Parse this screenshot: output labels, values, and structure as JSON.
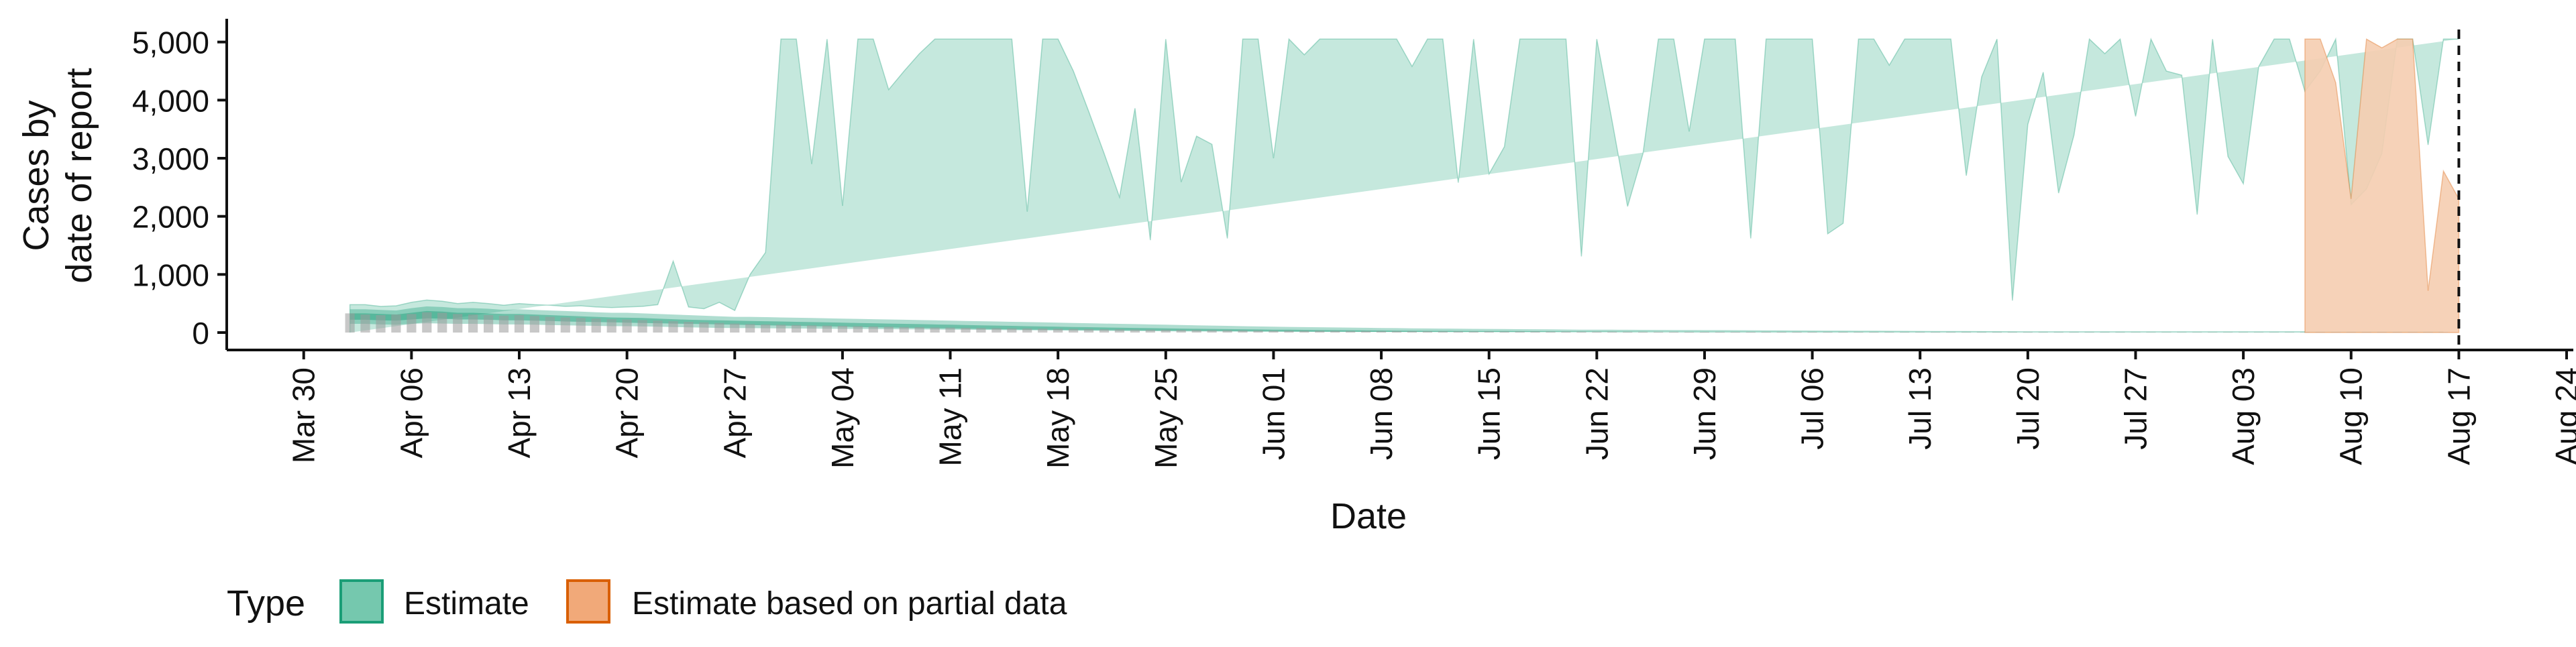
{
  "chart_data": {
    "type": "area",
    "title": "",
    "xlabel": "Date",
    "ylabel_lines": [
      "Cases by",
      "date of report"
    ],
    "ylim": [
      -300,
      5400
    ],
    "y_ticks": [
      0,
      1000,
      2000,
      3000,
      4000,
      5000
    ],
    "y_tick_labels": [
      "0",
      "1,000",
      "2,000",
      "3,000",
      "4,000",
      "5,000"
    ],
    "x_range": [
      "2020-03-25",
      "2020-08-24"
    ],
    "x_ticks": [
      "2020-03-30",
      "2020-04-06",
      "2020-04-13",
      "2020-04-20",
      "2020-04-27",
      "2020-05-04",
      "2020-05-11",
      "2020-05-18",
      "2020-05-25",
      "2020-06-01",
      "2020-06-08",
      "2020-06-15",
      "2020-06-22",
      "2020-06-29",
      "2020-07-06",
      "2020-07-13",
      "2020-07-20",
      "2020-07-27",
      "2020-08-03",
      "2020-08-10",
      "2020-08-17",
      "2020-08-24"
    ],
    "x_tick_labels": [
      "Mar 30",
      "Apr 06",
      "Apr 13",
      "Apr 20",
      "Apr 27",
      "May 04",
      "May 11",
      "May 18",
      "May 25",
      "Jun 01",
      "Jun 08",
      "Jun 15",
      "Jun 22",
      "Jun 29",
      "Jul 06",
      "Jul 13",
      "Jul 20",
      "Jul 27",
      "Aug 03",
      "Aug 10",
      "Aug 17",
      "Aug 24"
    ],
    "vline_date": "2020-08-17",
    "grid": false,
    "legend": {
      "title": "Type",
      "position": "bottom-left",
      "items": [
        {
          "label": "Estimate",
          "fill": "#66c2a5",
          "stroke": "#1b9e77"
        },
        {
          "label": "Estimate based on partial data",
          "fill": "#f0a06a",
          "stroke": "#d95f02"
        }
      ]
    },
    "series": [
      {
        "name": "Estimate",
        "color": "#1b9e77",
        "fill_color": "#9fd8c6",
        "start_date": "2020-04-02",
        "outer_upper": [
          480,
          480,
          450,
          460,
          520,
          560,
          540,
          500,
          520,
          500,
          470,
          500,
          480,
          470,
          450,
          460,
          440,
          430,
          440,
          450,
          480,
          1230,
          440,
          410,
          520,
          380,
          1000,
          1380,
          5050,
          5050,
          2900,
          5050,
          2180,
          5050,
          5050,
          4180,
          4500,
          4800,
          5050,
          5050,
          5050,
          5050,
          5050,
          5050,
          2080,
          5050,
          5050,
          4500,
          3800,
          3080,
          2330,
          3860,
          1590,
          5050,
          2590,
          3380,
          3240,
          1620,
          5050,
          5050,
          3000,
          5050,
          4780,
          5050,
          5050,
          5050,
          5050,
          5050,
          5050,
          4580,
          5050,
          5050,
          2580,
          5050,
          2730,
          3200,
          5050,
          5050,
          5050,
          5050,
          1310,
          5050,
          3630,
          2170,
          3080,
          5050,
          5050,
          3460,
          5050,
          5050,
          5050,
          1620,
          5050,
          5050,
          5050,
          5050,
          1700,
          1880,
          5050,
          5050,
          4600,
          5050,
          5050,
          5050,
          5050,
          2700,
          4400,
          5050,
          550,
          3580,
          4480,
          2400,
          3400,
          5050,
          4800,
          5050,
          3720,
          5050,
          4500,
          4430,
          2030,
          5050,
          3030,
          2560,
          4580,
          5050,
          5050,
          4150,
          4500,
          5050,
          2200,
          2470,
          3080,
          5050,
          5050,
          3230,
          5050,
          5050
        ],
        "outer_lower": [
          0,
          0,
          0,
          0,
          0,
          0,
          0,
          0,
          0,
          0,
          0,
          0,
          0,
          0,
          0,
          0,
          0,
          0,
          0,
          0,
          0,
          0,
          0,
          0,
          0,
          0,
          0,
          0,
          0,
          0,
          0,
          0,
          0,
          0,
          0,
          0,
          0,
          0,
          0,
          0,
          0,
          0,
          0,
          0,
          0,
          0,
          0,
          0,
          0,
          0,
          0,
          0,
          0,
          0,
          0,
          0,
          0,
          0,
          0,
          0,
          0,
          0,
          0,
          0,
          0,
          0,
          0,
          0,
          0,
          0,
          0,
          0,
          0,
          0,
          0,
          0,
          0,
          0,
          0,
          0,
          0,
          0,
          0,
          0,
          0,
          0,
          0,
          0,
          0,
          0,
          0,
          0,
          0,
          0,
          0,
          0,
          0,
          0,
          0,
          0,
          0,
          0,
          0,
          0,
          0,
          0,
          0,
          0,
          0,
          0,
          0,
          0,
          0,
          0,
          0,
          0,
          0,
          0,
          0,
          0,
          0,
          0,
          0,
          0,
          0,
          0,
          0,
          0,
          0,
          0,
          0,
          0,
          0,
          0,
          0,
          0,
          0
        ],
        "mid_upper": [
          400,
          400,
          390,
          380,
          420,
          450,
          440,
          420,
          420,
          410,
          390,
          400,
          390,
          380,
          370,
          360,
          350,
          340,
          340,
          330,
          320,
          310,
          300,
          290,
          280,
          270,
          270,
          265,
          260,
          255,
          250,
          245,
          240,
          235,
          230,
          225,
          220,
          215,
          210,
          205,
          200,
          195,
          190,
          185,
          180,
          175,
          170,
          165,
          160,
          155,
          150,
          145,
          140,
          135,
          130,
          125,
          120,
          115,
          110,
          105,
          100,
          97,
          94,
          91,
          88,
          85,
          82,
          79,
          76,
          73,
          70,
          68,
          66,
          64,
          62,
          60,
          58,
          56,
          54,
          52,
          50,
          49,
          48,
          47,
          46,
          45,
          44,
          43,
          42,
          41,
          40,
          39,
          38,
          37,
          36,
          35,
          34,
          33,
          32,
          31,
          30,
          29,
          28,
          27,
          26,
          25,
          24,
          23,
          22,
          21,
          20,
          20,
          20,
          20,
          20,
          20,
          20,
          20,
          20,
          20,
          20,
          20,
          20,
          20,
          20,
          20,
          20,
          20,
          20,
          20,
          20,
          20,
          20,
          20,
          20,
          20,
          20
        ],
        "mid_lower": [
          150,
          150,
          140,
          135,
          150,
          160,
          155,
          150,
          150,
          145,
          140,
          140,
          135,
          130,
          125,
          120,
          115,
          110,
          110,
          105,
          100,
          95,
          90,
          85,
          80,
          78,
          76,
          74,
          72,
          70,
          68,
          66,
          64,
          62,
          60,
          58,
          56,
          54,
          52,
          50,
          48,
          46,
          44,
          42,
          40,
          38,
          36,
          34,
          32,
          30,
          28,
          26,
          24,
          22,
          20,
          19,
          18,
          17,
          16,
          15,
          14,
          13,
          12,
          11,
          10,
          10,
          10,
          10,
          10,
          10,
          10,
          9,
          9,
          9,
          9,
          8,
          8,
          8,
          8,
          7,
          7,
          7,
          7,
          6,
          6,
          6,
          6,
          5,
          5,
          5,
          5,
          5,
          5,
          5,
          5,
          5,
          5,
          5,
          5,
          5,
          5,
          5,
          5,
          5,
          5,
          5,
          5,
          5,
          5,
          5,
          5,
          5,
          5,
          5,
          5,
          5,
          5,
          5,
          5,
          5,
          5,
          5,
          5,
          5,
          5,
          5,
          5,
          5,
          5,
          5,
          5,
          5,
          5,
          5,
          5,
          5,
          5
        ],
        "inner_upper": [
          330,
          330,
          320,
          310,
          340,
          370,
          360,
          340,
          340,
          330,
          320,
          320,
          310,
          300,
          290,
          280,
          270,
          260,
          255,
          250,
          240,
          230,
          220,
          215,
          210,
          205,
          200,
          195,
          190,
          185,
          180,
          175,
          170,
          165,
          160,
          155,
          150,
          145,
          140,
          135,
          130,
          125,
          120,
          115,
          110,
          105,
          100,
          96,
          92,
          88,
          84,
          80,
          76,
          72,
          68,
          65,
          62,
          59,
          56,
          53,
          50,
          48,
          46,
          44,
          42,
          40,
          38,
          36,
          34,
          32,
          30,
          29,
          28,
          27,
          26,
          25,
          24,
          23,
          22,
          21,
          20,
          19,
          18,
          17,
          16,
          15,
          15,
          15,
          15,
          15,
          15,
          15,
          15,
          15,
          15,
          15,
          15,
          15,
          15,
          15,
          15,
          15,
          15,
          15,
          15,
          15,
          15,
          15,
          15,
          15,
          15,
          15,
          15,
          15,
          15,
          15,
          15,
          15,
          15,
          15,
          15,
          15,
          15,
          15,
          15,
          15,
          15,
          15,
          15,
          15,
          15,
          15,
          15,
          15,
          15,
          15,
          15
        ],
        "inner_lower": [
          220,
          220,
          210,
          205,
          225,
          245,
          240,
          225,
          225,
          220,
          210,
          210,
          205,
          200,
          190,
          185,
          180,
          175,
          170,
          165,
          160,
          155,
          150,
          145,
          140,
          135,
          130,
          125,
          120,
          115,
          110,
          105,
          100,
          95,
          90,
          86,
          82,
          78,
          74,
          70,
          66,
          62,
          58,
          54,
          50,
          48,
          46,
          44,
          42,
          40,
          38,
          36,
          34,
          32,
          30,
          28,
          26,
          24,
          22,
          20,
          18,
          17,
          16,
          15,
          14,
          13,
          12,
          11,
          10,
          10,
          10,
          10,
          10,
          10,
          10,
          9,
          9,
          9,
          9,
          8,
          8,
          8,
          8,
          7,
          7,
          7,
          7,
          6,
          6,
          6,
          6,
          6,
          6,
          6,
          6,
          6,
          6,
          6,
          6,
          6,
          6,
          6,
          6,
          6,
          6,
          6,
          6,
          6,
          6,
          6,
          6,
          6,
          6,
          6,
          6,
          6,
          6,
          6,
          6,
          6,
          6,
          6,
          6,
          6,
          6,
          6,
          6,
          6,
          6,
          6,
          6,
          6,
          6,
          6,
          6,
          6,
          6
        ]
      },
      {
        "name": "Estimate based on partial data",
        "color": "#d95f02",
        "fill_color": "#f5cdb0",
        "start_date": "2020-08-07",
        "outer_upper": [
          5050,
          5050,
          4300,
          2300,
          5050,
          4900,
          5050,
          5050,
          720,
          2780,
          2300
        ],
        "outer_lower": [
          0,
          0,
          0,
          0,
          0,
          0,
          0,
          0,
          0,
          0,
          0
        ]
      }
    ],
    "observed_cases": {
      "name": "Cases by date of report",
      "color": "#9a9a9a",
      "start_date": "2020-04-02",
      "values": [
        330,
        310,
        300,
        310,
        320,
        350,
        340,
        320,
        310,
        300,
        290,
        300,
        285,
        270,
        260,
        250,
        240,
        230,
        225,
        215,
        205,
        195,
        185,
        175,
        165,
        155,
        145,
        140,
        135,
        130,
        125,
        120,
        115,
        110,
        105,
        100,
        95,
        92,
        88,
        85,
        82,
        78,
        75,
        72,
        70,
        68,
        65,
        62,
        60,
        57,
        55,
        52,
        50,
        48,
        46,
        44,
        42,
        40,
        38,
        36,
        34,
        33,
        32,
        31,
        30,
        28,
        27,
        26,
        25,
        24,
        23,
        22,
        21,
        20,
        20,
        19,
        18,
        18,
        17,
        16,
        16,
        15,
        15,
        14,
        14,
        13,
        13,
        12,
        12,
        11,
        11,
        11,
        10,
        10,
        10,
        10,
        9,
        9,
        9,
        9,
        8,
        8,
        8,
        8,
        8,
        7,
        7,
        7,
        7,
        7,
        6,
        6,
        6,
        6,
        6,
        6,
        5,
        5,
        5,
        5,
        5,
        5,
        5,
        5,
        5,
        5,
        5,
        5,
        5,
        5,
        5,
        5,
        5,
        5,
        5,
        5,
        5
      ]
    }
  }
}
